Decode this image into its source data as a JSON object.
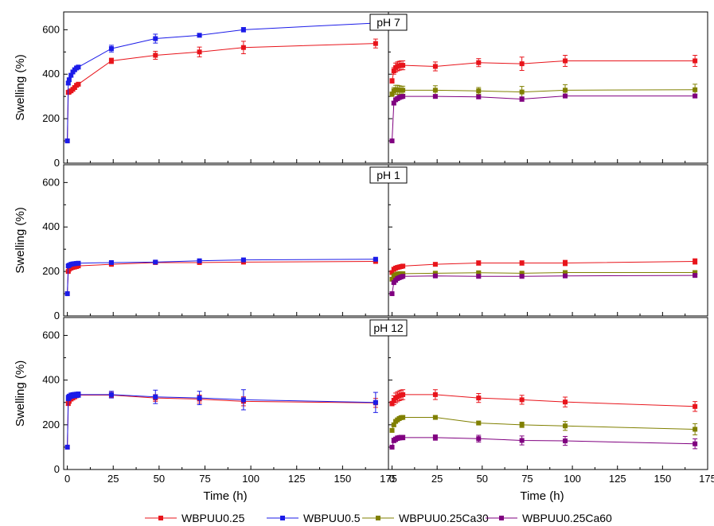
{
  "chart_data": {
    "type": "line",
    "ylabel": "Swelling (%)",
    "xlabel": "Time (h)",
    "xlim": [
      -2,
      175
    ],
    "ylim": [
      0,
      680
    ],
    "x_ticks": [
      0,
      25,
      50,
      75,
      100,
      125,
      150,
      175
    ],
    "y_ticks": [
      0,
      200,
      400,
      600
    ],
    "colors": {
      "WBPUU0.25": "#e8141b",
      "WBPUU0.5": "#1b1be8",
      "WBPUU0.25Ca30": "#808000",
      "WBPUU0.25Ca60": "#800080"
    },
    "legend": [
      "WBPUU0.25",
      "WBPUU0.5",
      "WBPUU0.25Ca30",
      "WBPUU0.25Ca60"
    ],
    "rows": [
      {
        "label": "pH 7",
        "left": [
          {
            "name": "WBPUU0.25",
            "x": [
              0,
              0.5,
              1,
              2,
              3,
              4,
              5,
              6,
              24,
              48,
              72,
              96,
              168
            ],
            "y": [
              100,
              318,
              320,
              325,
              332,
              340,
              350,
              355,
              460,
              485,
              500,
              520,
              538
            ],
            "err": [
              0,
              8,
              8,
              8,
              8,
              8,
              8,
              8,
              12,
              18,
              22,
              28,
              20
            ]
          },
          {
            "name": "WBPUU0.5",
            "x": [
              0,
              0.5,
              1,
              2,
              3,
              4,
              5,
              6,
              24,
              48,
              72,
              96,
              168
            ],
            "y": [
              100,
              360,
              375,
              395,
              410,
              420,
              428,
              432,
              515,
              560,
              575,
              600,
              630
            ],
            "err": [
              0,
              8,
              8,
              8,
              8,
              8,
              8,
              8,
              15,
              20,
              8,
              10,
              10
            ]
          }
        ],
        "right": [
          {
            "name": "WBPUU0.25",
            "x": [
              0,
              1,
              2,
              3,
              4,
              5,
              6,
              24,
              48,
              72,
              96,
              168
            ],
            "y": [
              370,
              415,
              430,
              435,
              438,
              440,
              440,
              435,
              452,
              447,
              460,
              460
            ],
            "err": [
              10,
              15,
              20,
              20,
              20,
              20,
              20,
              20,
              18,
              30,
              25,
              25
            ]
          },
          {
            "name": "WBPUU0.25Ca30",
            "x": [
              0,
              1,
              2,
              3,
              4,
              5,
              6,
              24,
              48,
              72,
              96,
              168
            ],
            "y": [
              310,
              325,
              330,
              330,
              328,
              328,
              328,
              328,
              325,
              320,
              328,
              330
            ],
            "err": [
              10,
              15,
              20,
              20,
              20,
              18,
              18,
              20,
              15,
              25,
              25,
              25
            ]
          },
          {
            "name": "WBPUU0.25Ca60",
            "x": [
              0,
              1,
              2,
              3,
              4,
              5,
              6,
              24,
              48,
              72,
              96,
              168
            ],
            "y": [
              100,
              270,
              285,
              290,
              295,
              298,
              300,
              300,
              298,
              288,
              302,
              302
            ],
            "err": [
              0,
              8,
              8,
              8,
              8,
              8,
              8,
              8,
              8,
              10,
              8,
              8
            ]
          }
        ]
      },
      {
        "label": "pH 1",
        "left": [
          {
            "name": "WBPUU0.25",
            "x": [
              0,
              0.5,
              1,
              2,
              3,
              4,
              5,
              6,
              24,
              48,
              72,
              96,
              168
            ],
            "y": [
              100,
              200,
              210,
              215,
              218,
              220,
              222,
              225,
              232,
              240,
              240,
              242,
              245
            ],
            "err": [
              0,
              5,
              5,
              5,
              5,
              5,
              5,
              5,
              5,
              5,
              5,
              5,
              5
            ]
          },
          {
            "name": "WBPUU0.5",
            "x": [
              0,
              0.5,
              1,
              2,
              3,
              4,
              5,
              6,
              24,
              48,
              72,
              96,
              168
            ],
            "y": [
              100,
              225,
              228,
              232,
              234,
              235,
              236,
              237,
              240,
              242,
              248,
              252,
              255
            ],
            "err": [
              0,
              5,
              5,
              5,
              5,
              5,
              5,
              5,
              5,
              5,
              5,
              5,
              5
            ]
          }
        ],
        "right": [
          {
            "name": "WBPUU0.25",
            "x": [
              0,
              1,
              2,
              3,
              4,
              5,
              6,
              24,
              48,
              72,
              96,
              168
            ],
            "y": [
              195,
              210,
              215,
              218,
              220,
              222,
              224,
              232,
              238,
              238,
              238,
              245
            ],
            "err": [
              8,
              8,
              8,
              8,
              8,
              8,
              8,
              8,
              10,
              10,
              12,
              12
            ]
          },
          {
            "name": "WBPUU0.25Ca30",
            "x": [
              0,
              1,
              2,
              3,
              4,
              5,
              6,
              24,
              48,
              72,
              96,
              168
            ],
            "y": [
              165,
              180,
              185,
              188,
              190,
              190,
              190,
              192,
              194,
              192,
              195,
              195
            ],
            "err": [
              6,
              6,
              6,
              6,
              6,
              6,
              6,
              6,
              6,
              6,
              6,
              6
            ]
          },
          {
            "name": "WBPUU0.25Ca60",
            "x": [
              0,
              1,
              2,
              3,
              4,
              5,
              6,
              24,
              48,
              72,
              96,
              168
            ],
            "y": [
              100,
              150,
              160,
              168,
              172,
              175,
              178,
              180,
              178,
              178,
              180,
              182
            ],
            "err": [
              0,
              6,
              6,
              6,
              6,
              6,
              6,
              6,
              6,
              6,
              6,
              6
            ]
          }
        ]
      },
      {
        "label": "pH 12",
        "left": [
          {
            "name": "WBPUU0.25",
            "x": [
              0,
              0.5,
              1,
              2,
              3,
              4,
              5,
              6,
              24,
              48,
              72,
              96,
              168
            ],
            "y": [
              100,
              295,
              305,
              315,
              320,
              325,
              330,
              333,
              333,
              320,
              315,
              305,
              298
            ],
            "err": [
              0,
              8,
              8,
              8,
              8,
              8,
              8,
              8,
              12,
              15,
              18,
              20,
              20
            ]
          },
          {
            "name": "WBPUU0.5",
            "x": [
              0,
              0.5,
              1,
              2,
              3,
              4,
              5,
              6,
              24,
              48,
              72,
              96,
              168
            ],
            "y": [
              100,
              320,
              325,
              330,
              332,
              333,
              334,
              335,
              335,
              325,
              320,
              312,
              300
            ],
            "err": [
              0,
              12,
              12,
              12,
              12,
              12,
              12,
              12,
              15,
              30,
              30,
              45,
              45
            ]
          }
        ],
        "right": [
          {
            "name": "WBPUU0.25",
            "x": [
              0,
              1,
              2,
              3,
              4,
              5,
              6,
              24,
              48,
              72,
              96,
              168
            ],
            "y": [
              295,
              310,
              320,
              325,
              330,
              333,
              335,
              335,
              320,
              312,
              302,
              282
            ],
            "err": [
              10,
              20,
              22,
              22,
              22,
              22,
              22,
              22,
              20,
              20,
              22,
              22
            ]
          },
          {
            "name": "WBPUU0.25Ca30",
            "x": [
              0,
              1,
              2,
              3,
              4,
              5,
              6,
              24,
              48,
              72,
              96,
              168
            ],
            "y": [
              175,
              200,
              215,
              222,
              228,
              232,
              233,
              233,
              208,
              200,
              195,
              180
            ],
            "err": [
              8,
              8,
              8,
              8,
              8,
              8,
              8,
              8,
              8,
              12,
              20,
              25
            ]
          },
          {
            "name": "WBPUU0.25Ca60",
            "x": [
              0,
              1,
              2,
              3,
              4,
              5,
              6,
              24,
              48,
              72,
              96,
              168
            ],
            "y": [
              100,
              130,
              135,
              140,
              142,
              143,
              143,
              143,
              138,
              130,
              128,
              115
            ],
            "err": [
              0,
              10,
              10,
              10,
              10,
              10,
              10,
              12,
              15,
              20,
              20,
              22
            ]
          }
        ]
      }
    ]
  }
}
